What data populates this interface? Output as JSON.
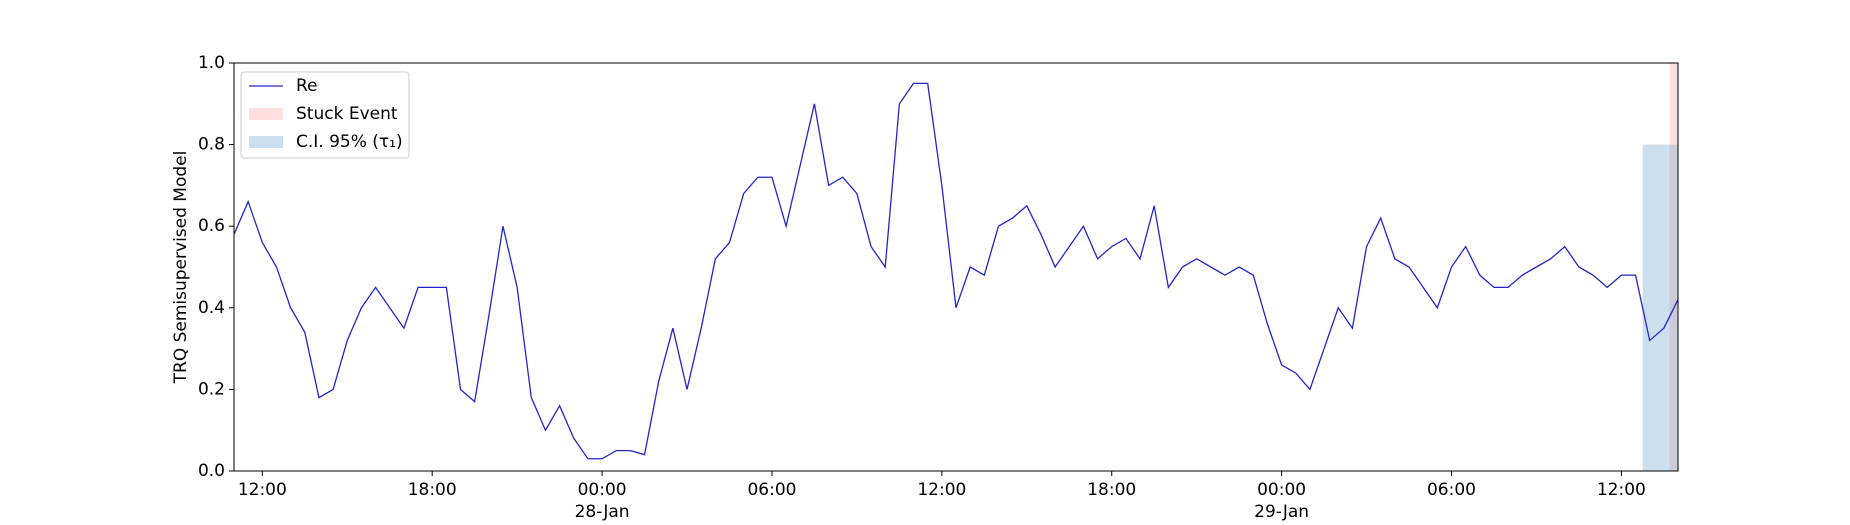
{
  "chart_data": {
    "type": "line",
    "ylabel": "TRQ Semisupervised Model",
    "x": [
      "1900-01-27T11:00",
      "1900-01-27T11:30",
      "1900-01-27T12:00",
      "1900-01-27T12:30",
      "1900-01-27T13:00",
      "1900-01-27T13:30",
      "1900-01-27T14:00",
      "1900-01-27T14:30",
      "1900-01-27T15:00",
      "1900-01-27T15:30",
      "1900-01-27T16:00",
      "1900-01-27T16:30",
      "1900-01-27T17:00",
      "1900-01-27T17:30",
      "1900-01-27T18:00",
      "1900-01-27T18:30",
      "1900-01-27T19:00",
      "1900-01-27T19:30",
      "1900-01-27T20:00",
      "1900-01-27T20:30",
      "1900-01-27T21:00",
      "1900-01-27T21:30",
      "1900-01-27T22:00",
      "1900-01-27T22:30",
      "1900-01-27T23:00",
      "1900-01-27T23:30",
      "1900-01-28T00:00",
      "1900-01-28T00:30",
      "1900-01-28T01:00",
      "1900-01-28T01:30",
      "1900-01-28T02:00",
      "1900-01-28T02:30",
      "1900-01-28T03:00",
      "1900-01-28T03:30",
      "1900-01-28T04:00",
      "1900-01-28T04:30",
      "1900-01-28T05:00",
      "1900-01-28T05:30",
      "1900-01-28T06:00",
      "1900-01-28T06:30",
      "1900-01-28T07:00",
      "1900-01-28T07:30",
      "1900-01-28T08:00",
      "1900-01-28T08:30",
      "1900-01-28T09:00",
      "1900-01-28T09:30",
      "1900-01-28T10:00",
      "1900-01-28T10:30",
      "1900-01-28T11:00",
      "1900-01-28T11:30",
      "1900-01-28T12:00",
      "1900-01-28T12:30",
      "1900-01-28T13:00",
      "1900-01-28T13:30",
      "1900-01-28T14:00",
      "1900-01-28T14:30",
      "1900-01-28T15:00",
      "1900-01-28T15:30",
      "1900-01-28T16:00",
      "1900-01-28T16:30",
      "1900-01-28T17:00",
      "1900-01-28T17:30",
      "1900-01-28T18:00",
      "1900-01-28T18:30",
      "1900-01-28T19:00",
      "1900-01-28T19:30",
      "1900-01-28T20:00",
      "1900-01-28T20:30",
      "1900-01-28T21:00",
      "1900-01-28T21:30",
      "1900-01-28T22:00",
      "1900-01-28T22:30",
      "1900-01-28T23:00",
      "1900-01-28T23:30",
      "1900-01-29T00:00",
      "1900-01-29T00:30",
      "1900-01-29T01:00",
      "1900-01-29T01:30",
      "1900-01-29T02:00",
      "1900-01-29T02:30",
      "1900-01-29T03:00",
      "1900-01-29T03:30",
      "1900-01-29T04:00",
      "1900-01-29T04:30",
      "1900-01-29T05:00",
      "1900-01-29T05:30",
      "1900-01-29T06:00",
      "1900-01-29T06:30",
      "1900-01-29T07:00",
      "1900-01-29T07:30",
      "1900-01-29T08:00",
      "1900-01-29T08:30",
      "1900-01-29T09:00",
      "1900-01-29T09:30",
      "1900-01-29T10:00",
      "1900-01-29T10:30",
      "1900-01-29T11:00",
      "1900-01-29T11:30",
      "1900-01-29T12:00",
      "1900-01-29T12:30",
      "1900-01-29T13:00",
      "1900-01-29T13:30",
      "1900-01-29T14:00"
    ],
    "series": [
      {
        "name": "Re",
        "color": "#2424cc",
        "values": [
          0.58,
          0.66,
          0.56,
          0.5,
          0.4,
          0.34,
          0.18,
          0.2,
          0.32,
          0.4,
          0.45,
          0.4,
          0.35,
          0.45,
          0.45,
          0.45,
          0.2,
          0.17,
          0.38,
          0.6,
          0.45,
          0.18,
          0.1,
          0.16,
          0.08,
          0.03,
          0.03,
          0.05,
          0.05,
          0.04,
          0.22,
          0.35,
          0.2,
          0.35,
          0.52,
          0.56,
          0.68,
          0.72,
          0.72,
          0.6,
          0.75,
          0.9,
          0.7,
          0.72,
          0.68,
          0.55,
          0.5,
          0.9,
          0.95,
          0.95,
          0.7,
          0.4,
          0.5,
          0.48,
          0.6,
          0.62,
          0.65,
          0.58,
          0.5,
          0.55,
          0.6,
          0.52,
          0.55,
          0.57,
          0.52,
          0.65,
          0.45,
          0.5,
          0.52,
          0.5,
          0.48,
          0.5,
          0.48,
          0.36,
          0.26,
          0.24,
          0.2,
          0.3,
          0.4,
          0.35,
          0.55,
          0.62,
          0.52,
          0.5,
          0.45,
          0.4,
          0.5,
          0.55,
          0.48,
          0.45,
          0.45,
          0.48,
          0.5,
          0.52,
          0.55,
          0.5,
          0.48,
          0.45,
          0.48,
          0.48,
          0.32,
          0.35,
          0.42
        ]
      }
    ],
    "spans": [
      {
        "name": "Stuck Event",
        "color": "rgba(255,150,150,0.3)",
        "x": [
          "1900-01-29T13:42",
          "1900-01-29T14:00"
        ]
      },
      {
        "name": "C.I. 95% (τ₁)",
        "color": "rgba(120,170,210,0.38)",
        "x": [
          "1900-01-29T12:45",
          "1900-01-29T14:00"
        ],
        "y": [
          0,
          0.8
        ]
      }
    ],
    "xlim": [
      "1900-01-27T11:00",
      "1900-01-29T14:00"
    ],
    "xticks": [
      {
        "value": "1900-01-27T12:00",
        "label": "12:00"
      },
      {
        "value": "1900-01-27T18:00",
        "label": "18:00"
      },
      {
        "value": "1900-01-28T00:00",
        "label": "00:00\n28-Jan\n1900"
      },
      {
        "value": "1900-01-28T06:00",
        "label": "06:00"
      },
      {
        "value": "1900-01-28T12:00",
        "label": "12:00"
      },
      {
        "value": "1900-01-28T18:00",
        "label": "18:00"
      },
      {
        "value": "1900-01-29T00:00",
        "label": "00:00\n29-Jan"
      },
      {
        "value": "1900-01-29T06:00",
        "label": "06:00"
      },
      {
        "value": "1900-01-29T12:00",
        "label": "12:00"
      }
    ],
    "ylim": [
      0,
      1
    ],
    "yticks": [
      {
        "value": 0,
        "label": "0.0"
      },
      {
        "value": 0.2,
        "label": "0.2"
      },
      {
        "value": 0.4,
        "label": "0.4"
      },
      {
        "value": 0.6,
        "label": "0.6"
      },
      {
        "value": 0.8,
        "label": "0.8"
      },
      {
        "value": 1,
        "label": "1.0"
      }
    ],
    "legend": "upper left"
  }
}
